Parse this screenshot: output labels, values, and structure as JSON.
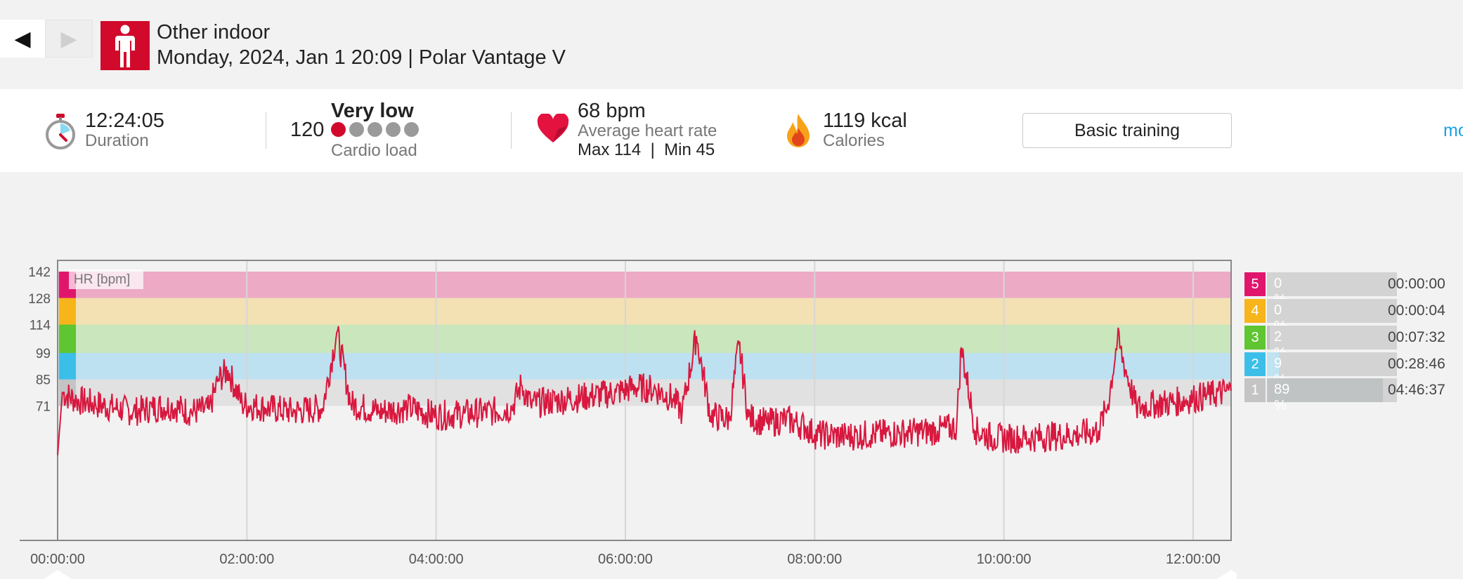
{
  "nav": {
    "back_icon": "◀",
    "forward_icon": "▶"
  },
  "header": {
    "sport_icon": "standing-person-icon",
    "sport": "Other indoor",
    "datetime": "Monday, 2024, Jan 1 20:09 | Polar Vantage V"
  },
  "summary": {
    "duration": {
      "value": "12:24:05",
      "label": "Duration"
    },
    "cardio": {
      "score": "120",
      "level": "Very low",
      "label": "Cardio load",
      "dots_total": 5,
      "dots_filled": 1
    },
    "heart": {
      "value": "68 bpm",
      "label": "Average heart rate",
      "max_min": "Max 114  |  Min 45"
    },
    "calories": {
      "value": "1119 kcal",
      "label": "Calories"
    },
    "training_button": "Basic training",
    "more_link": "mo"
  },
  "colors": {
    "accent_red": "#d10a2c",
    "hr_line": "#d8183f",
    "zone5": "#e0166d",
    "zone4": "#f7b51b",
    "zone3": "#5fc531",
    "zone2": "#3bbfe9",
    "zone1": "#c4c4c4",
    "link": "#1ba0e1"
  },
  "chart_data": {
    "type": "line",
    "title": "HR [bpm]",
    "x_unit": "hh:mm:ss elapsed",
    "xlim": [
      "00:00:00",
      "12:24:05"
    ],
    "x_ticks": [
      "00:00:00",
      "02:00:00",
      "04:00:00",
      "06:00:00",
      "08:00:00",
      "10:00:00",
      "12:00:00"
    ],
    "y_ticks": [
      142,
      128,
      114,
      99,
      85,
      71
    ],
    "ylim": [
      0,
      142
    ],
    "zones": [
      {
        "zone": 5,
        "min": 128,
        "max": 142,
        "color": "#e0166d"
      },
      {
        "zone": 4,
        "min": 114,
        "max": 128,
        "color": "#f7b51b"
      },
      {
        "zone": 3,
        "min": 99,
        "max": 114,
        "color": "#5fc531"
      },
      {
        "zone": 2,
        "min": 85,
        "max": 99,
        "color": "#3bbfe9"
      },
      {
        "zone": 1,
        "min": 71,
        "max": 85,
        "color": "#c4c4c4"
      }
    ],
    "series": [
      {
        "x_hours": [
          0,
          0.05,
          0.2,
          0.4,
          0.6,
          0.8,
          1.0,
          1.2,
          1.4,
          1.6,
          1.7,
          1.8,
          1.95,
          2.2,
          2.5,
          2.8,
          2.95,
          3.1,
          3.4,
          3.7,
          4.0,
          4.3,
          4.6,
          4.8,
          4.9,
          5.0,
          5.3,
          5.6,
          5.9,
          6.1,
          6.3,
          6.5,
          6.6,
          6.75,
          6.9,
          7.1,
          7.2,
          7.3,
          7.5,
          7.7,
          7.9,
          8.0,
          8.3,
          8.6,
          9.0,
          9.3,
          9.5,
          9.55,
          9.7,
          9.9,
          10.2,
          10.5,
          10.8,
          11.0,
          11.1,
          11.2,
          11.4,
          11.6,
          11.8,
          12.0,
          12.2,
          12.4
        ],
        "y": [
          45,
          78,
          74,
          72,
          70,
          68,
          70,
          71,
          68,
          69,
          85,
          90,
          72,
          70,
          68,
          70,
          110,
          72,
          68,
          70,
          66,
          67,
          68,
          70,
          82,
          72,
          74,
          76,
          78,
          81,
          80,
          75,
          68,
          108,
          66,
          64,
          104,
          65,
          62,
          64,
          60,
          56,
          55,
          56,
          57,
          58,
          60,
          102,
          58,
          54,
          54,
          55,
          56,
          58,
          72,
          106,
          70,
          72,
          73,
          75,
          77,
          79
        ]
      }
    ]
  },
  "zone_table": [
    {
      "zone": "5",
      "percent": "0 %",
      "fraction": 0.0,
      "time": "00:00:00"
    },
    {
      "zone": "4",
      "percent": "0 %",
      "fraction": 0.0,
      "time": "00:00:04"
    },
    {
      "zone": "3",
      "percent": "2 %",
      "fraction": 0.02,
      "time": "00:07:32"
    },
    {
      "zone": "2",
      "percent": "9 %",
      "fraction": 0.09,
      "time": "00:28:46"
    },
    {
      "zone": "1",
      "percent": "89 %",
      "fraction": 0.89,
      "time": "04:46:37"
    }
  ]
}
